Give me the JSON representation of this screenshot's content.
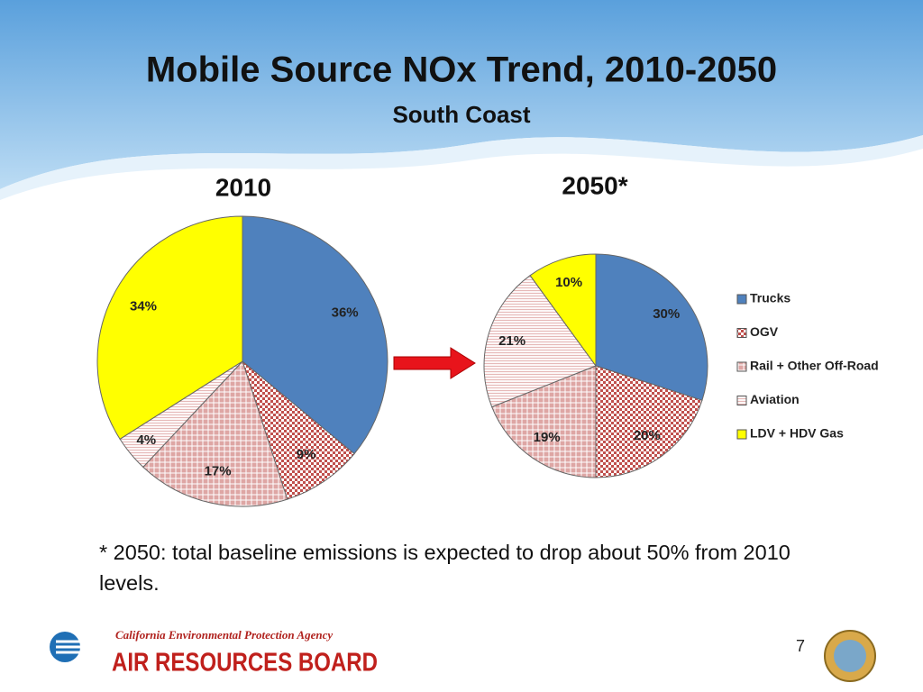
{
  "title": "Mobile Source NOx Trend, 2010-2050",
  "subtitle": "South Coast",
  "footnote": "* 2050: total baseline emissions is expected to drop about 50% from 2010 levels.",
  "page_number": "7",
  "logo": {
    "agency": "California Environmental Protection Agency",
    "board": "AIR RESOURCES BOARD"
  },
  "chart_data": [
    {
      "type": "pie",
      "title": "2010",
      "categories": [
        "Trucks",
        "OGV",
        "Rail + Other Off-Road",
        "Aviation",
        "LDV + HDV Gas"
      ],
      "values": [
        36,
        9,
        17,
        4,
        34
      ],
      "value_labels": [
        "36%",
        "9%",
        "17%",
        "4%",
        "34%"
      ],
      "colors": [
        "#4f81bd",
        "#c0504d",
        "#d99694",
        "#e6b9b8",
        "#ffff00"
      ],
      "patterns": [
        null,
        "dots",
        "cross",
        "lines",
        null
      ]
    },
    {
      "type": "pie",
      "title": "2050*",
      "categories": [
        "Trucks",
        "OGV",
        "Rail + Other Off-Road",
        "Aviation",
        "LDV + HDV Gas"
      ],
      "values": [
        30,
        20,
        19,
        21,
        10
      ],
      "value_labels": [
        "30%",
        "20%",
        "19%",
        "21%",
        "10%"
      ],
      "colors": [
        "#4f81bd",
        "#c0504d",
        "#d99694",
        "#e6b9b8",
        "#ffff00"
      ],
      "patterns": [
        null,
        "dots",
        "cross",
        "lines",
        null
      ],
      "legend": "right"
    }
  ]
}
